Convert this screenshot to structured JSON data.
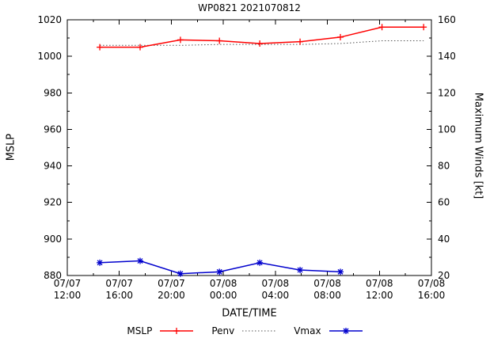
{
  "title": "WP0821 2021070812",
  "axes": {
    "left_label": "MSLP",
    "right_label": "Maximum Winds [kt]",
    "x_label": "DATE/TIME"
  },
  "legend": {
    "items": [
      {
        "label": "MSLP"
      },
      {
        "label": "Penv"
      },
      {
        "label": "Vmax"
      }
    ]
  },
  "chart_data": {
    "type": "line",
    "title": "WP0821 2021070812",
    "xlabel": "DATE/TIME",
    "ylabel_left": "MSLP",
    "ylabel_right": "Maximum Winds [kt]",
    "grid": false,
    "legend_position": "bottom-center",
    "x_range_hours": [
      0,
      28
    ],
    "x_minor_step_hours": 2,
    "x_ticks": [
      {
        "date": "07/07",
        "time": "12:00",
        "hour": 0
      },
      {
        "date": "07/07",
        "time": "16:00",
        "hour": 4
      },
      {
        "date": "07/07",
        "time": "20:00",
        "hour": 8
      },
      {
        "date": "07/08",
        "time": "00:00",
        "hour": 12
      },
      {
        "date": "07/08",
        "time": "04:00",
        "hour": 16
      },
      {
        "date": "07/08",
        "time": "08:00",
        "hour": 20
      },
      {
        "date": "07/08",
        "time": "12:00",
        "hour": 24
      },
      {
        "date": "07/08",
        "time": "16:00",
        "hour": 28
      }
    ],
    "y_left": {
      "range": [
        880,
        1020
      ],
      "ticks": [
        880,
        900,
        920,
        940,
        960,
        980,
        1000,
        1020
      ],
      "minor_step": 10
    },
    "y_right": {
      "range": [
        20,
        160
      ],
      "ticks": [
        20,
        40,
        60,
        80,
        100,
        120,
        140,
        160
      ],
      "minor_step": 10
    },
    "series": [
      {
        "name": "MSLP",
        "axis": "left",
        "color": "#ff0000",
        "line": "solid",
        "marker": "plus",
        "x_hours": [
          2.5,
          5.6,
          8.7,
          11.7,
          14.8,
          17.9,
          21.0,
          24.2,
          27.4
        ],
        "values": [
          1005,
          1005,
          1009,
          1008.5,
          1007,
          1008,
          1010.5,
          1016,
          1016
        ]
      },
      {
        "name": "Penv",
        "axis": "left",
        "color": "#555555",
        "line": "dotted",
        "marker": "none",
        "x_hours": [
          2.5,
          5.6,
          8.7,
          11.7,
          14.8,
          17.9,
          21.0,
          24.2,
          27.4
        ],
        "values": [
          1006,
          1006,
          1006,
          1006.5,
          1006.5,
          1006.5,
          1007,
          1008.5,
          1008.5
        ]
      },
      {
        "name": "Vmax",
        "axis": "right",
        "color": "#0000cd",
        "line": "solid",
        "marker": "asterisk",
        "x_hours": [
          2.5,
          5.6,
          8.7,
          11.7,
          14.8,
          17.9,
          21.0
        ],
        "values": [
          27,
          28,
          21,
          22,
          27,
          23,
          22
        ]
      }
    ]
  }
}
